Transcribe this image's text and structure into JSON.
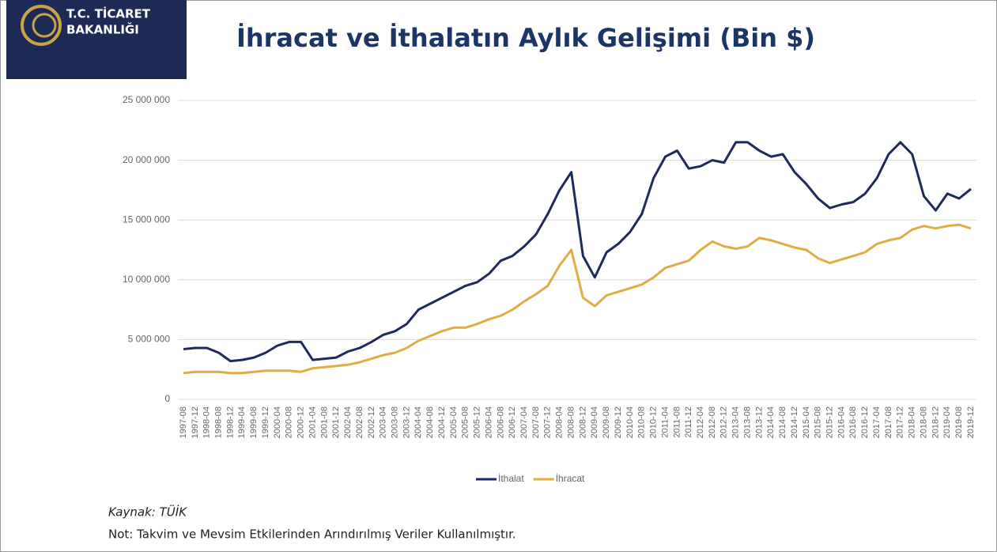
{
  "header": {
    "logo_lines": [
      "T.C. TİCARET",
      "BAKANLIĞI"
    ]
  },
  "chart_data": {
    "type": "line",
    "title": "İhracat ve İthalatın Aylık Gelişimi (Bin $)",
    "source": "Kaynak: TÜİK",
    "note": "Not: Takvim ve Mevsim Etkilerinden Arındırılmış Veriler Kullanılmıştır.",
    "categories": [
      "1997-08",
      "1997-12",
      "1998-04",
      "1998-08",
      "1998-12",
      "1999-04",
      "1999-08",
      "1999-12",
      "2000-04",
      "2000-08",
      "2000-12",
      "2001-04",
      "2001-08",
      "2001-12",
      "2002-04",
      "2002-08",
      "2002-12",
      "2003-04",
      "2003-08",
      "2003-12",
      "2004-04",
      "2004-08",
      "2004-12",
      "2005-04",
      "2005-08",
      "2005-12",
      "2006-04",
      "2006-08",
      "2006-12",
      "2007-04",
      "2007-08",
      "2007-12",
      "2008-04",
      "2008-08",
      "2008-12",
      "2009-04",
      "2009-08",
      "2009-12",
      "2010-04",
      "2010-08",
      "2010-12",
      "2011-04",
      "2011-08",
      "2011-12",
      "2012-04",
      "2012-08",
      "2012-12",
      "2013-04",
      "2013-08",
      "2013-12",
      "2014-04",
      "2014-08",
      "2014-12",
      "2015-04",
      "2015-08",
      "2015-12",
      "2016-04",
      "2016-08",
      "2016-12",
      "2017-04",
      "2017-08",
      "2017-12",
      "2018-04",
      "2018-08",
      "2018-12",
      "2019-04",
      "2019-08",
      "2019-12"
    ],
    "series": [
      {
        "name": "İthalat",
        "color": "#1f2a5c",
        "values": [
          4200000,
          4300000,
          4300000,
          3900000,
          3200000,
          3300000,
          3500000,
          3900000,
          4500000,
          4800000,
          4800000,
          3300000,
          3400000,
          3500000,
          4000000,
          4300000,
          4800000,
          5400000,
          5700000,
          6300000,
          7500000,
          8000000,
          8500000,
          9000000,
          9500000,
          9800000,
          10500000,
          11600000,
          12000000,
          12800000,
          13800000,
          15500000,
          17500000,
          19000000,
          12000000,
          10200000,
          12300000,
          13000000,
          14000000,
          15500000,
          18500000,
          20300000,
          20800000,
          19300000,
          19500000,
          20000000,
          19800000,
          21500000,
          21500000,
          20800000,
          20300000,
          20500000,
          19000000,
          18000000,
          16800000,
          16000000,
          16300000,
          16500000,
          17200000,
          18500000,
          20500000,
          21500000,
          20500000,
          17000000,
          15800000,
          17200000,
          16800000,
          17600000
        ]
      },
      {
        "name": "İhracat",
        "color": "#dcae45",
        "values": [
          2200000,
          2300000,
          2300000,
          2300000,
          2200000,
          2200000,
          2300000,
          2400000,
          2400000,
          2400000,
          2300000,
          2600000,
          2700000,
          2800000,
          2900000,
          3100000,
          3400000,
          3700000,
          3900000,
          4300000,
          4900000,
          5300000,
          5700000,
          6000000,
          6000000,
          6300000,
          6700000,
          7000000,
          7500000,
          8200000,
          8800000,
          9500000,
          11200000,
          12500000,
          8500000,
          7800000,
          8700000,
          9000000,
          9300000,
          9600000,
          10200000,
          11000000,
          11300000,
          11600000,
          12500000,
          13200000,
          12800000,
          12600000,
          12800000,
          13500000,
          13300000,
          13000000,
          12700000,
          12500000,
          11800000,
          11400000,
          11700000,
          12000000,
          12300000,
          13000000,
          13300000,
          13500000,
          14200000,
          14500000,
          14300000,
          14500000,
          14600000,
          14300000
        ]
      }
    ],
    "ylim": [
      0,
      25000000
    ],
    "yticks": [
      0,
      {
        "value": 5000000,
        "label": "5 000 000"
      },
      {
        "value": 10000000,
        "label": "10 000 000"
      },
      {
        "value": 15000000,
        "label": "15 000 000"
      },
      {
        "value": 20000000,
        "label": "20 000 000"
      },
      {
        "value": 25000000,
        "label": "25 000 000"
      }
    ],
    "grid": true
  }
}
